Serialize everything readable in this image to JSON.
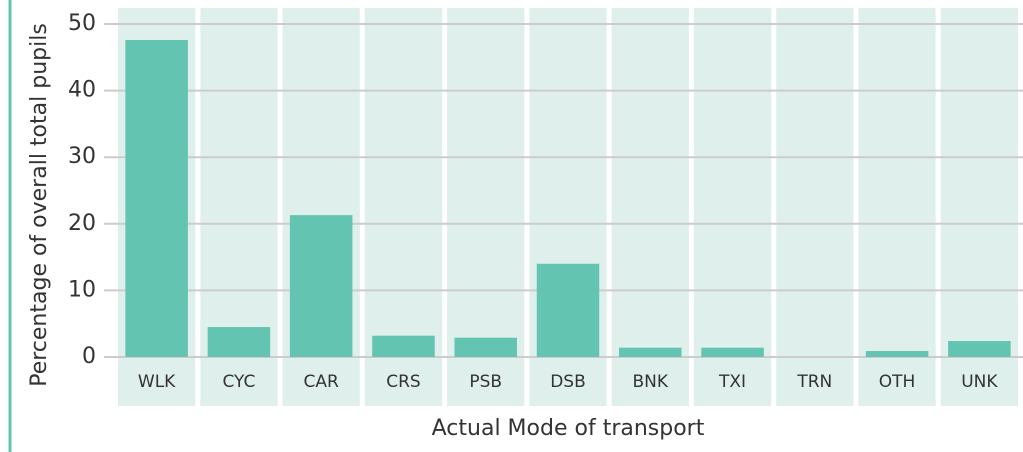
{
  "chart_data": {
    "type": "bar",
    "xlabel": "Actual Mode of transport",
    "ylabel": "Percentage of overall total pupils",
    "categories": [
      "WLK",
      "CYC",
      "CAR",
      "CRS",
      "PSB",
      "DSB",
      "BNK",
      "TXI",
      "TRN",
      "OTH",
      "UNK"
    ],
    "values": [
      47.6,
      4.5,
      21.3,
      3.2,
      2.9,
      14.0,
      1.4,
      1.4,
      0,
      0.9,
      2.4
    ],
    "color": "#63c5b1",
    "ylim": [
      0,
      50
    ],
    "yticks": [
      0,
      10,
      20,
      30,
      40,
      50
    ],
    "grid": true
  }
}
